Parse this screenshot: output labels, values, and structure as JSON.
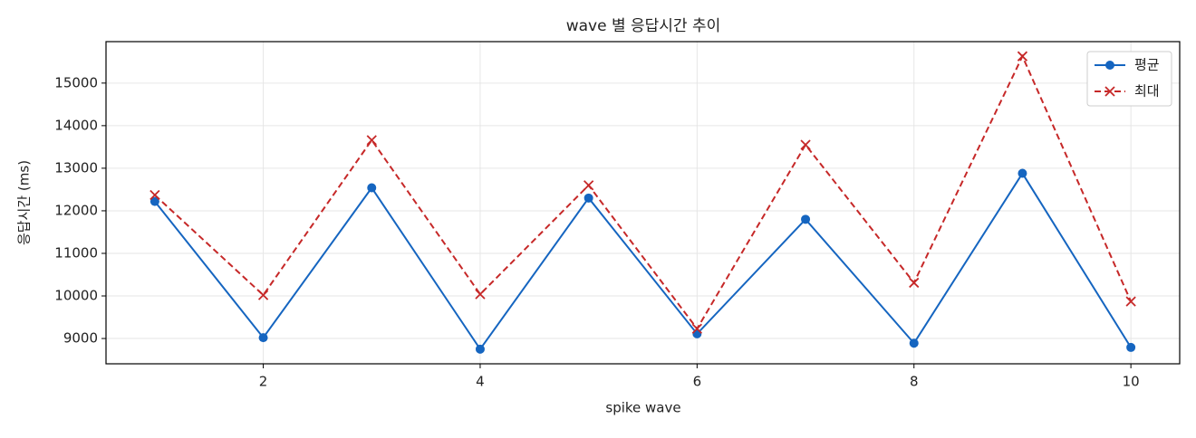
{
  "chart_data": {
    "type": "line",
    "title": "wave 별 응답시간 추이",
    "xlabel": "spike wave",
    "ylabel": "응답시간 (ms)",
    "x": [
      1,
      2,
      3,
      4,
      5,
      6,
      7,
      8,
      9,
      10
    ],
    "series": [
      {
        "name": "평균",
        "color": "#1565c0",
        "linestyle": "solid",
        "marker": "circle",
        "values": [
          12220,
          9020,
          12540,
          8750,
          12300,
          9110,
          11800,
          8890,
          12880,
          8790
        ]
      },
      {
        "name": "최대",
        "color": "#c62828",
        "linestyle": "dashed",
        "marker": "x",
        "values": [
          12370,
          10020,
          13660,
          10040,
          12600,
          9230,
          13550,
          10310,
          15630,
          9870
        ]
      }
    ],
    "xlim": [
      0.55,
      10.45
    ],
    "xticks": [
      2,
      4,
      6,
      8,
      10
    ],
    "ylim": [
      8406,
      15974
    ],
    "yticks": [
      9000,
      10000,
      11000,
      12000,
      13000,
      14000,
      15000
    ],
    "grid": true,
    "legend": "upper right"
  }
}
